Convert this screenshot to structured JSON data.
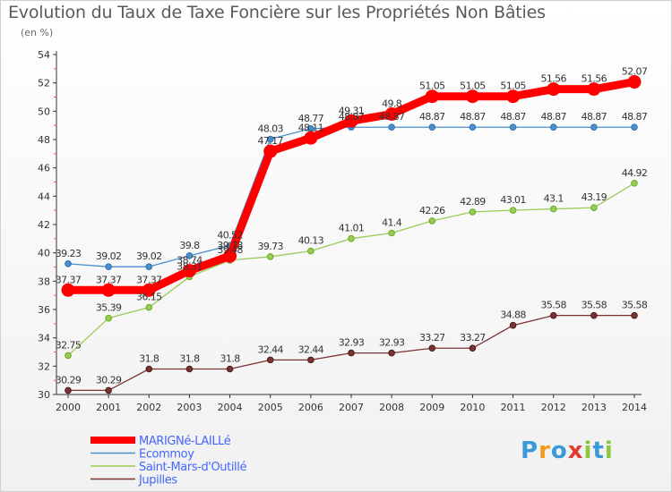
{
  "title": "Evolution du Taux de Taxe Foncière sur les Propriétés Non Bâties",
  "subtitle": "(en %)",
  "logo": {
    "text": "Proxiti",
    "letters": [
      "P",
      "r",
      "o",
      "x",
      "i",
      "t",
      "i"
    ],
    "colors": [
      "#3a9ad9",
      "#f39a1e",
      "#3a9ad9",
      "#e23b2e",
      "#8cc63f",
      "#3a9ad9",
      "#8cc63f"
    ]
  },
  "chart_data": {
    "type": "line",
    "x": [
      "2000",
      "2001",
      "2002",
      "2003",
      "2004",
      "2005",
      "2006",
      "2007",
      "2008",
      "2009",
      "2010",
      "2011",
      "2012",
      "2013",
      "2014"
    ],
    "ylim": [
      30,
      54
    ],
    "yticks": [
      "30",
      "32",
      "34",
      "36",
      "38",
      "40",
      "42",
      "44",
      "46",
      "48",
      "50",
      "52",
      "54"
    ],
    "grid": false,
    "legend": "bottom-left",
    "series": [
      {
        "name": "MARIGNé-LAILLé",
        "color": "#ff0000",
        "legend_color": "#4466ff",
        "values": [
          37.37,
          37.37,
          37.37,
          38.74,
          39.78,
          47.17,
          48.11,
          49.31,
          49.8,
          51.05,
          51.05,
          51.05,
          51.56,
          51.56,
          52.07
        ],
        "labels": [
          "37.37",
          "37.37",
          "37.37",
          "38.74",
          "39.78",
          "47.17",
          "48.11",
          "49.31",
          "49.8",
          "51.05",
          "51.05",
          "51.05",
          "51.56",
          "51.56",
          "52.07"
        ]
      },
      {
        "name": "Ecommoy",
        "color": "#4a90d0",
        "legend_color": "#4466ff",
        "values": [
          39.23,
          39.02,
          39.02,
          39.8,
          40.52,
          48.03,
          48.77,
          48.87,
          48.87,
          48.87,
          48.87,
          48.87,
          48.87,
          48.87,
          48.87
        ],
        "labels": [
          "39.23",
          "39.02",
          "39.02",
          "39.8",
          "40.52",
          "48.03",
          "48.77",
          "48.87",
          "48.87",
          "48.87",
          "48.87",
          "48.87",
          "48.87",
          "48.87",
          "48.87"
        ]
      },
      {
        "name": "Saint-Mars-d'Outillé",
        "color": "#99cc55",
        "legend_color": "#4466ff",
        "values": [
          32.75,
          35.39,
          36.15,
          38.31,
          39.48,
          39.73,
          40.13,
          41.01,
          41.4,
          42.26,
          42.89,
          43.01,
          43.1,
          43.19,
          44.92
        ],
        "labels": [
          "32.75",
          "35.39",
          "36.15",
          "38.31",
          "39.48",
          "39.73",
          "40.13",
          "41.01",
          "41.4",
          "42.26",
          "42.89",
          "43.01",
          "43.1",
          "43.19",
          "44.92"
        ]
      },
      {
        "name": "Jupilles",
        "color": "#7a3333",
        "legend_color": "#4466ff",
        "values": [
          30.29,
          30.29,
          31.8,
          31.8,
          31.8,
          32.44,
          32.44,
          32.93,
          32.93,
          33.27,
          33.27,
          34.88,
          35.58,
          35.58,
          35.58
        ],
        "labels": [
          "30.29",
          "30.29",
          "31.8",
          "31.8",
          "31.8",
          "32.44",
          "32.44",
          "32.93",
          "32.93",
          "33.27",
          "33.27",
          "34.88",
          "35.58",
          "35.58",
          "35.58"
        ]
      }
    ]
  }
}
